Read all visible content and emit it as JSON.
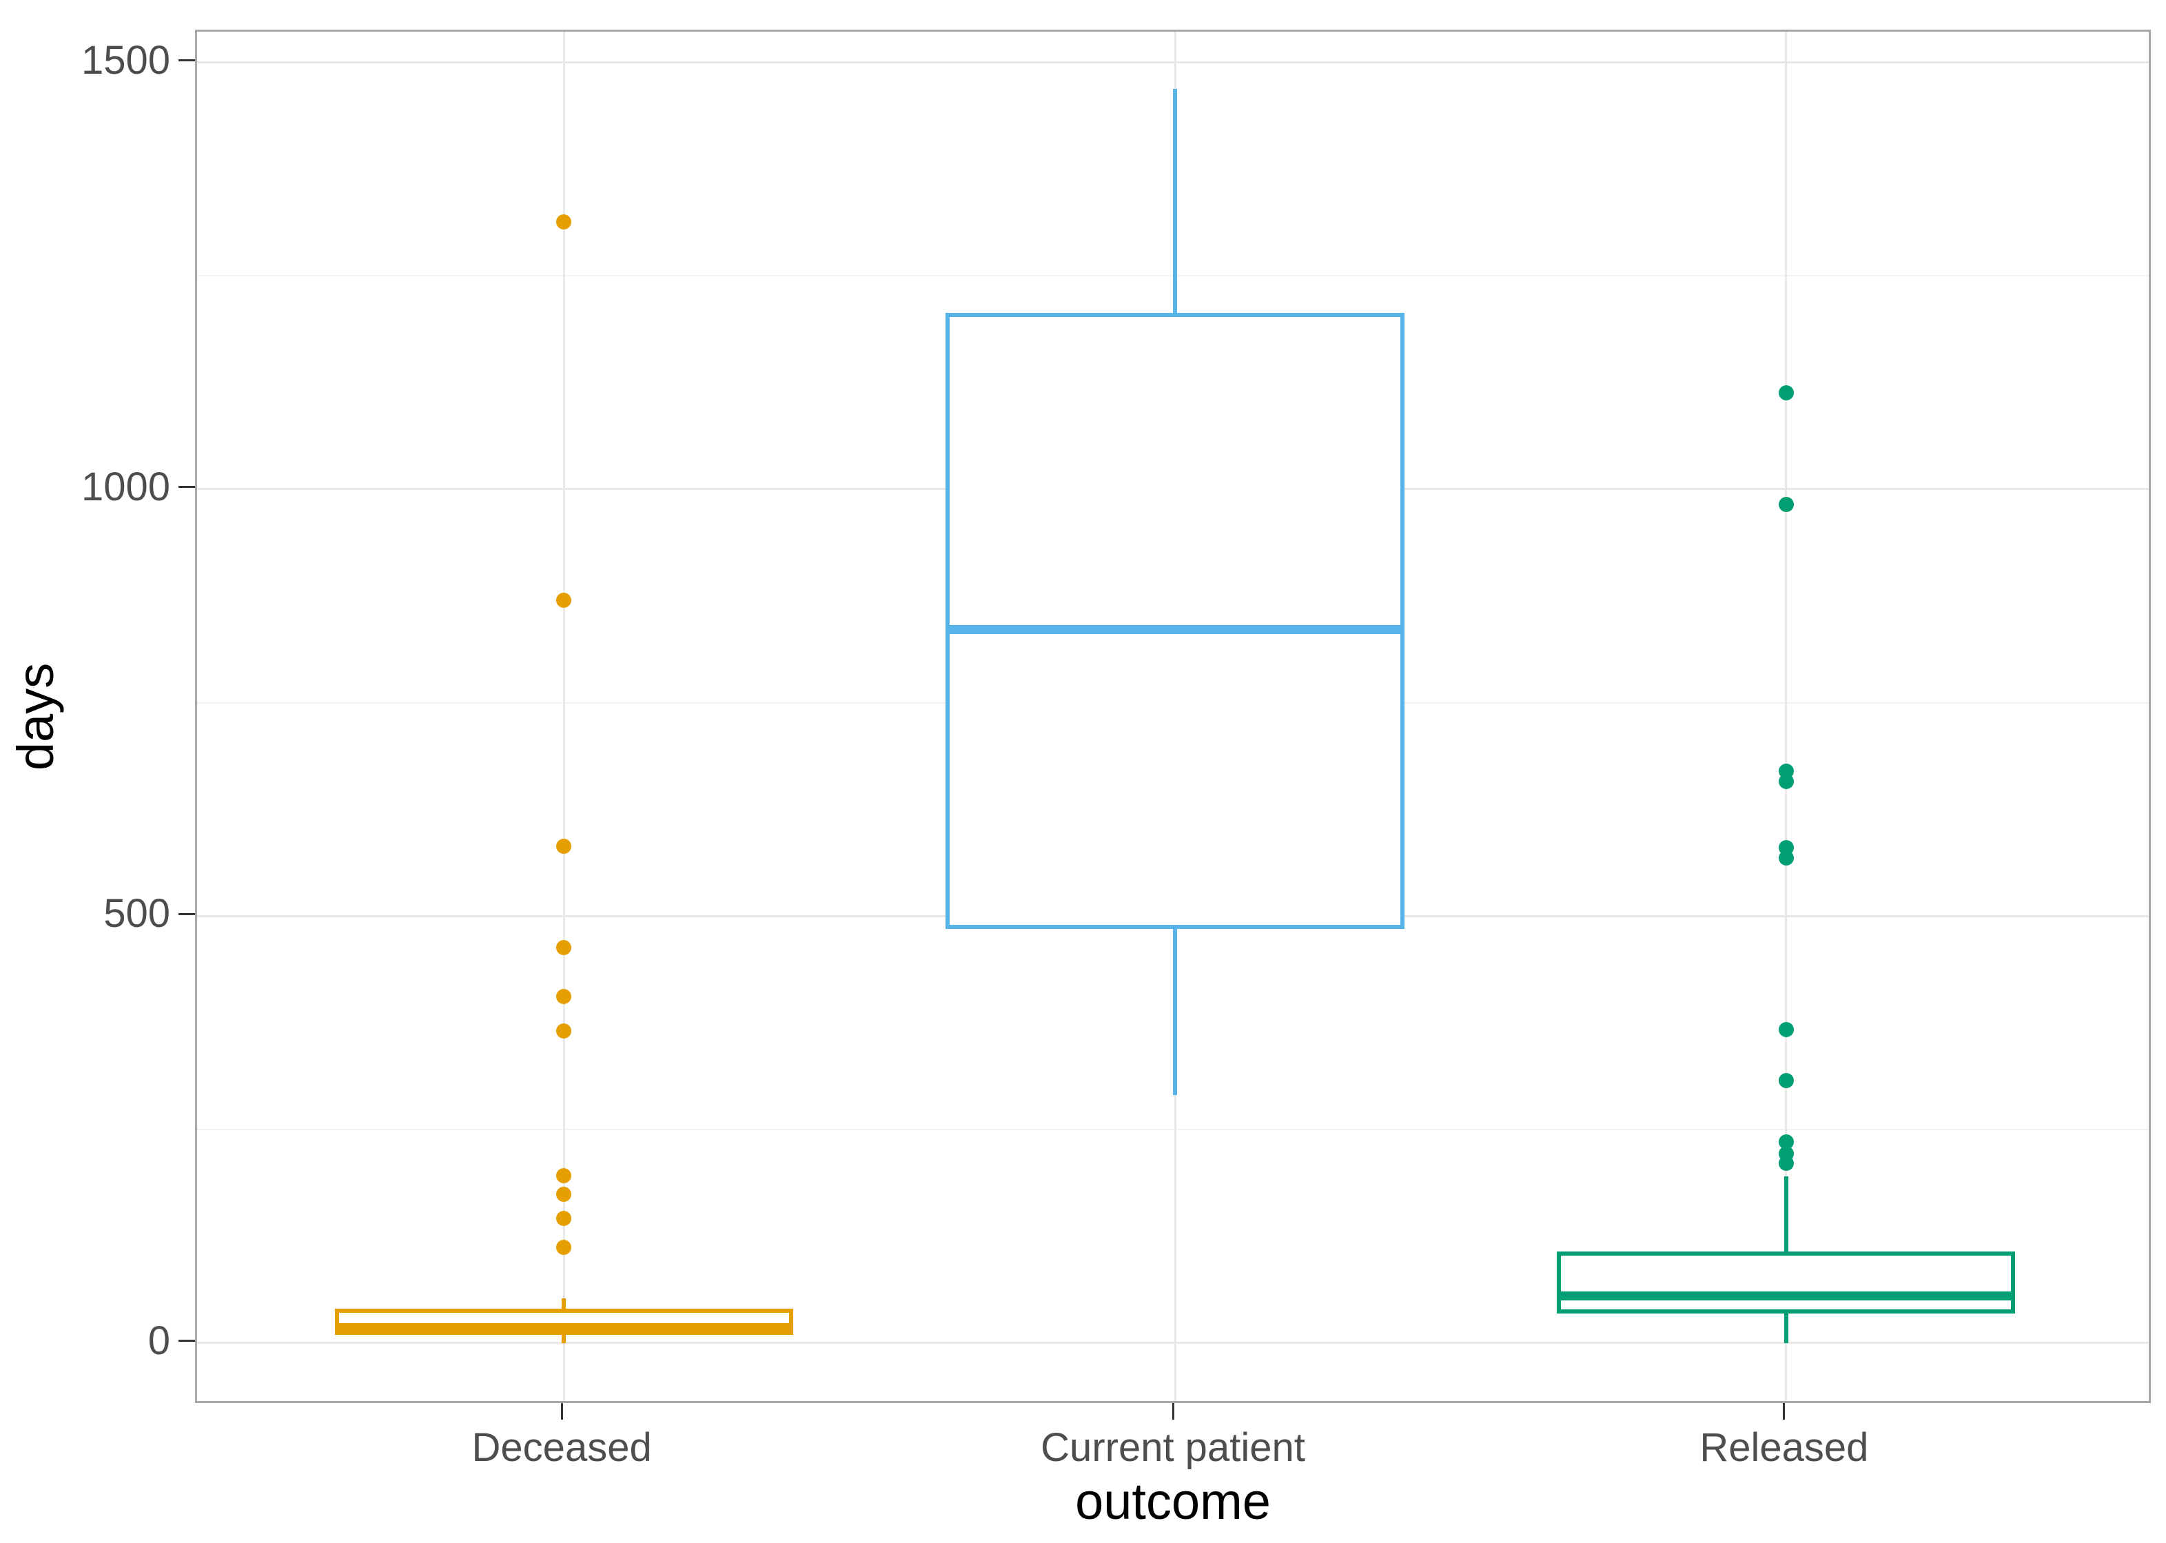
{
  "figure": {
    "kind": "ggplot-style boxplot figure",
    "background": "#ffffff"
  },
  "axes": {
    "y_title": "days",
    "x_title": "outcome",
    "y_tick_labels": [
      "0",
      "500",
      "1000",
      "1500"
    ],
    "x_tick_labels": [
      "Deceased",
      "Current patient",
      "Released"
    ]
  },
  "style": {
    "panel_background": "#ffffff",
    "panel_border": "#a7a7a7",
    "grid_major": "#e8e8e8",
    "grid_minor": "#f2f2f2",
    "tick_mark": "#333333",
    "tick_label_color": "#4d4d4d",
    "axis_title_color": "#000000",
    "deceased_color": "#E69F00",
    "current_patient_color": "#56B4E9",
    "released_color": "#009E73"
  },
  "chart_data": {
    "type": "boxplot",
    "title": "",
    "xlabel": "outcome",
    "ylabel": "days",
    "categories": [
      "Deceased",
      "Current patient",
      "Released"
    ],
    "ylim": [
      -73,
      1536
    ],
    "y_major_ticks": [
      0,
      500,
      1000,
      1500
    ],
    "y_minor_gridlines": [
      250,
      750,
      1250
    ],
    "grid": true,
    "legend_position": "none",
    "series": [
      {
        "name": "Deceased",
        "color": "#E69F00",
        "box": {
          "whisker_low": 0,
          "q1": 9,
          "median": 18,
          "q3": 40,
          "whisker_high": 52
        },
        "outliers": [
          112,
          146,
          174,
          196,
          365,
          406,
          463,
          582,
          870,
          1313
        ]
      },
      {
        "name": "Current patient",
        "color": "#56B4E9",
        "box": {
          "whisker_low": 290,
          "q1": 485,
          "median": 836,
          "q3": 1207,
          "whisker_high": 1469
        },
        "outliers": []
      },
      {
        "name": "Released",
        "color": "#009E73",
        "box": {
          "whisker_low": 0,
          "q1": 34,
          "median": 55,
          "q3": 107,
          "whisker_high": 195
        },
        "outliers": [
          210,
          222,
          235,
          307,
          367,
          568,
          580,
          658,
          670,
          982,
          1113
        ]
      }
    ]
  }
}
